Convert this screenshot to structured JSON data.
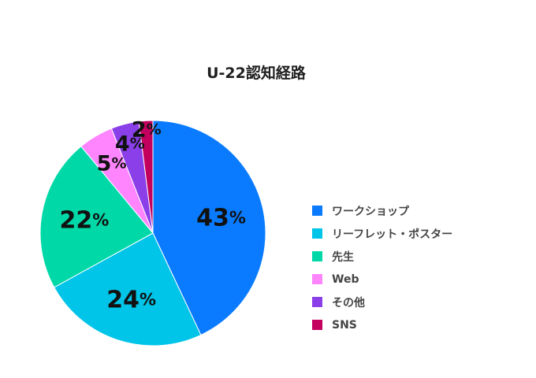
{
  "chart_data": {
    "type": "pie",
    "title": "U-22認知経路",
    "legend_position": "right",
    "start": "top",
    "direction": "clockwise",
    "slices": [
      {
        "label": "ワークショップ",
        "value": 43,
        "display": "43%",
        "color": "#0A7BFF"
      },
      {
        "label": "リーフレット・ポスター",
        "value": 24,
        "display": "24%",
        "color": "#00C4E8"
      },
      {
        "label": "先生",
        "value": 22,
        "display": "22%",
        "color": "#00D9A7"
      },
      {
        "label": "Web",
        "value": 5,
        "display": "5%",
        "color": "#FF85FF"
      },
      {
        "label": "その他",
        "value": 4,
        "display": "4%",
        "color": "#8A3FE8"
      },
      {
        "label": "SNS",
        "value": 2,
        "display": "2%",
        "color": "#C4005E"
      }
    ]
  }
}
